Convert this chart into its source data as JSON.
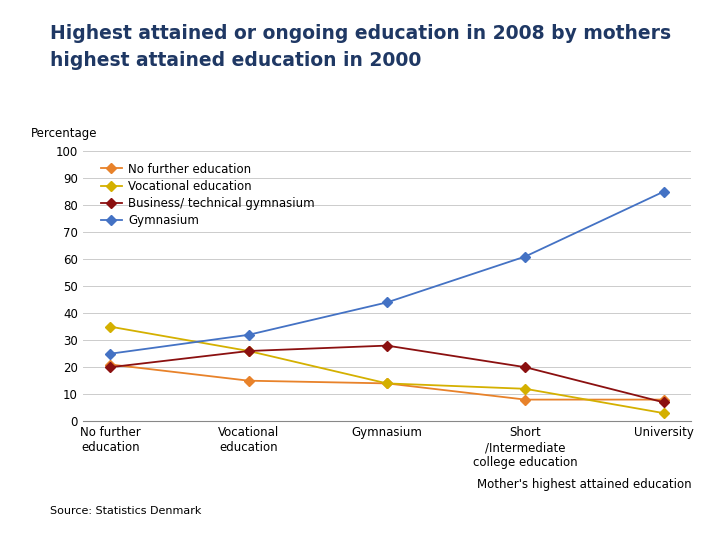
{
  "title_line1": "Highest attained or ongoing education in 2008 by mothers",
  "title_line2": "highest attained education in 2000",
  "ylabel": "Percentage",
  "xlabel": "Mother's highest attained education",
  "source": "Source: Statistics Denmark",
  "categories": [
    "No further\neducation",
    "Vocational\neducation",
    "Gymnasium",
    "Short\n/Intermediate\ncollege education",
    "University"
  ],
  "series": [
    {
      "label": "No further education",
      "color": "#E8822A",
      "marker": "D",
      "markersize": 5,
      "values": [
        21,
        15,
        14,
        8,
        8
      ]
    },
    {
      "label": "Vocational education",
      "color": "#D4B000",
      "marker": "D",
      "markersize": 5,
      "values": [
        35,
        26,
        14,
        12,
        3
      ]
    },
    {
      "label": "Business/ technical gymnasium",
      "color": "#8B1010",
      "marker": "D",
      "markersize": 5,
      "values": [
        20,
        26,
        28,
        20,
        7
      ]
    },
    {
      "label": "Gymnasium",
      "color": "#4472C4",
      "marker": "D",
      "markersize": 5,
      "values": [
        25,
        32,
        44,
        61,
        85
      ]
    }
  ],
  "ylim": [
    0,
    100
  ],
  "yticks": [
    0,
    10,
    20,
    30,
    40,
    50,
    60,
    70,
    80,
    90,
    100
  ],
  "background_color": "#F0F0F0",
  "card_color": "#FFFFFF",
  "grid_color": "#CCCCCC",
  "title_color": "#1F3864",
  "title_fontsize": 13.5,
  "axis_fontsize": 8.5,
  "legend_fontsize": 8.5,
  "source_fontsize": 8,
  "xlabel_fontsize": 8.5
}
